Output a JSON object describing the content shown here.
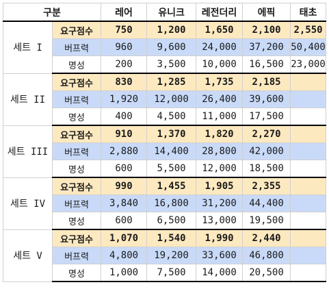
{
  "headers": [
    "구분",
    "레어",
    "유니크",
    "레전더리",
    "에픽",
    "태초"
  ],
  "sets": [
    {
      "name": "세트 I",
      "rows": [
        {
          "label": "요구점수",
          "values": [
            "750",
            "1,200",
            "1,650",
            "2,100",
            "2,550"
          ]
        },
        {
          "label": "버프력",
          "values": [
            "960",
            "9,600",
            "24,000",
            "37,200",
            "50,400"
          ]
        },
        {
          "label": "명성",
          "values": [
            "200",
            "3,500",
            "10,000",
            "16,500",
            "23,000"
          ]
        }
      ]
    },
    {
      "name": "세트 II",
      "rows": [
        {
          "label": "요구점수",
          "values": [
            "830",
            "1,285",
            "1,735",
            "2,185",
            ""
          ]
        },
        {
          "label": "버프력",
          "values": [
            "1,920",
            "12,000",
            "26,400",
            "39,600",
            ""
          ]
        },
        {
          "label": "명성",
          "values": [
            "400",
            "4,500",
            "11,000",
            "17,500",
            ""
          ]
        }
      ]
    },
    {
      "name": "세트 III",
      "rows": [
        {
          "label": "요구점수",
          "values": [
            "910",
            "1,370",
            "1,820",
            "2,270",
            ""
          ]
        },
        {
          "label": "버프력",
          "values": [
            "2,880",
            "14,400",
            "28,800",
            "42,000",
            ""
          ]
        },
        {
          "label": "명성",
          "values": [
            "600",
            "5,500",
            "12,000",
            "18,500",
            ""
          ]
        }
      ]
    },
    {
      "name": "세트 IV",
      "rows": [
        {
          "label": "요구점수",
          "values": [
            "990",
            "1,455",
            "1,905",
            "2,355",
            ""
          ]
        },
        {
          "label": "버프력",
          "values": [
            "3,840",
            "16,800",
            "31,200",
            "44,400",
            ""
          ]
        },
        {
          "label": "명성",
          "values": [
            "600",
            "6,500",
            "13,000",
            "19,500",
            ""
          ]
        }
      ]
    },
    {
      "name": "세트 V",
      "rows": [
        {
          "label": "요구점수",
          "values": [
            "1,070",
            "1,540",
            "1,990",
            "2,440",
            ""
          ]
        },
        {
          "label": "버프력",
          "values": [
            "4,800",
            "19,200",
            "33,600",
            "46,800",
            ""
          ]
        },
        {
          "label": "명성",
          "values": [
            "1,000",
            "7,500",
            "14,000",
            "20,500",
            ""
          ]
        }
      ]
    }
  ]
}
